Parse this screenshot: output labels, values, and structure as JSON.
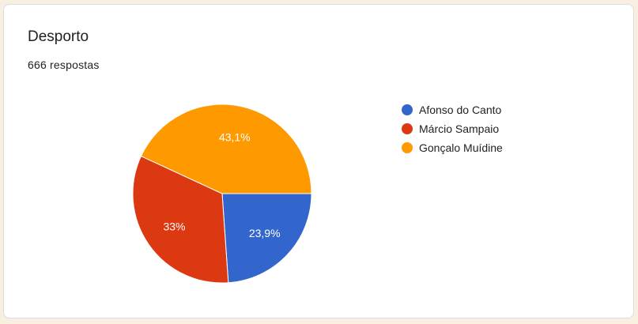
{
  "card": {
    "title": "Desporto",
    "responses": "666 respostas"
  },
  "chart_data": {
    "type": "pie",
    "categories": [
      "Afonso do Canto",
      "Márcio Sampaio",
      "Gonçalo Muídine"
    ],
    "values": [
      23.9,
      33,
      43.1
    ],
    "labels": [
      "23,9%",
      "33%",
      "43,1%"
    ],
    "colors": [
      "#3366cc",
      "#dc3912",
      "#ff9900"
    ],
    "legend": "right"
  }
}
